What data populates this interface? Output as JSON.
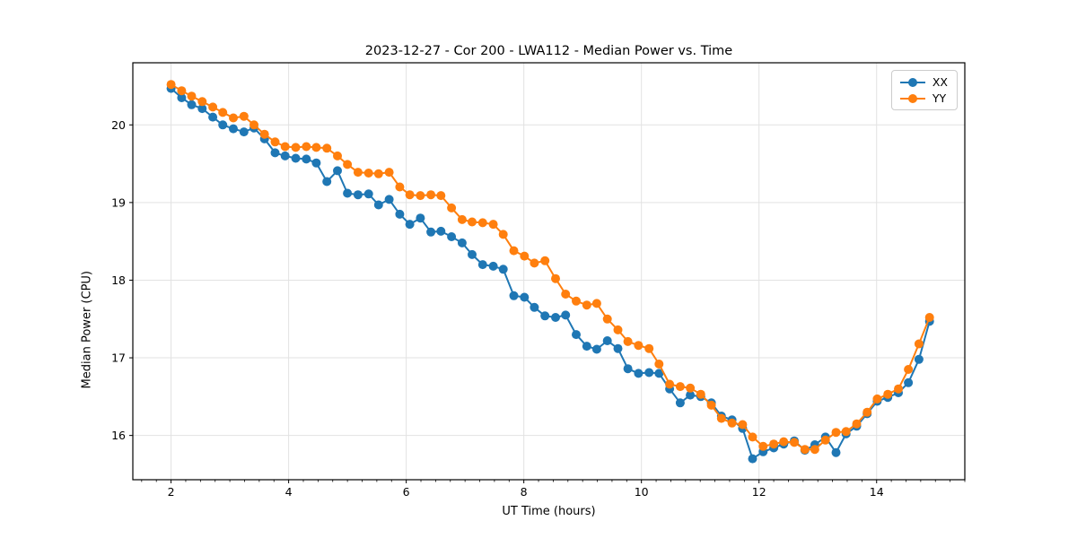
{
  "chart_data": {
    "type": "line",
    "title": "2023-12-27 - Cor 200 - LWA112 - Median Power vs. Time",
    "xlabel": "UT Time (hours)",
    "ylabel": "Median Power (CPU)",
    "xlim": [
      1.35,
      15.5
    ],
    "ylim": [
      15.43,
      20.8
    ],
    "x_ticks": [
      2,
      4,
      6,
      8,
      10,
      12,
      14
    ],
    "x_minor_step": 0.25,
    "y_ticks": [
      16,
      17,
      18,
      19,
      20
    ],
    "grid": true,
    "grid_color": "#e2e2e2",
    "legend_position": "upper right",
    "marker": "o",
    "x": [
      2.0,
      2.18,
      2.35,
      2.53,
      2.71,
      2.88,
      3.06,
      3.24,
      3.41,
      3.59,
      3.77,
      3.94,
      4.12,
      4.3,
      4.47,
      4.65,
      4.83,
      5.0,
      5.18,
      5.36,
      5.53,
      5.71,
      5.89,
      6.06,
      6.24,
      6.42,
      6.59,
      6.77,
      6.95,
      7.12,
      7.3,
      7.48,
      7.65,
      7.83,
      8.01,
      8.18,
      8.36,
      8.54,
      8.71,
      8.89,
      9.07,
      9.24,
      9.42,
      9.6,
      9.77,
      9.95,
      10.13,
      10.3,
      10.48,
      10.66,
      10.83,
      11.01,
      11.19,
      11.36,
      11.54,
      11.72,
      11.89,
      12.07,
      12.25,
      12.42,
      12.6,
      12.78,
      12.95,
      13.13,
      13.31,
      13.48,
      13.66,
      13.84,
      14.01,
      14.19,
      14.37,
      14.54,
      14.72,
      14.9
    ],
    "series": [
      {
        "name": "XX",
        "color": "#1f77b4",
        "values": [
          20.47,
          20.35,
          20.26,
          20.21,
          20.1,
          20.0,
          19.95,
          19.91,
          19.96,
          19.82,
          19.64,
          19.6,
          19.57,
          19.56,
          19.51,
          19.27,
          19.41,
          19.12,
          19.1,
          19.11,
          18.97,
          19.04,
          18.85,
          18.72,
          18.8,
          18.62,
          18.63,
          18.56,
          18.48,
          18.33,
          18.2,
          18.18,
          18.14,
          17.8,
          17.78,
          17.65,
          17.54,
          17.52,
          17.55,
          17.3,
          17.15,
          17.11,
          17.22,
          17.12,
          16.86,
          16.8,
          16.81,
          16.8,
          16.6,
          16.42,
          16.52,
          16.5,
          16.42,
          16.25,
          16.2,
          16.09,
          15.7,
          15.79,
          15.84,
          15.89,
          15.93,
          15.81,
          15.88,
          15.98,
          15.78,
          16.02,
          16.12,
          16.28,
          16.44,
          16.49,
          16.55,
          16.68,
          16.98,
          17.47
        ]
      },
      {
        "name": "YY",
        "color": "#ff7f0e",
        "values": [
          20.52,
          20.44,
          20.37,
          20.3,
          20.23,
          20.16,
          20.09,
          20.11,
          20.0,
          19.88,
          19.78,
          19.72,
          19.71,
          19.72,
          19.71,
          19.7,
          19.6,
          19.49,
          19.39,
          19.38,
          19.37,
          19.39,
          19.2,
          19.1,
          19.09,
          19.1,
          19.09,
          18.93,
          18.78,
          18.75,
          18.74,
          18.72,
          18.59,
          18.38,
          18.31,
          18.22,
          18.25,
          18.02,
          17.82,
          17.73,
          17.68,
          17.7,
          17.5,
          17.36,
          17.21,
          17.16,
          17.12,
          16.92,
          16.66,
          16.63,
          16.61,
          16.53,
          16.39,
          16.22,
          16.16,
          16.14,
          15.98,
          15.86,
          15.89,
          15.92,
          15.91,
          15.82,
          15.82,
          15.94,
          16.04,
          16.05,
          16.15,
          16.3,
          16.47,
          16.53,
          16.6,
          16.85,
          17.18,
          17.52
        ]
      }
    ]
  }
}
